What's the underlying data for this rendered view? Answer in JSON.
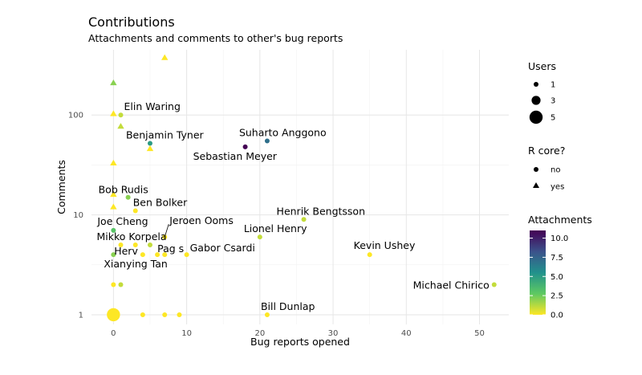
{
  "chart_data": {
    "type": "scatter",
    "title": "Contributions",
    "subtitle": "Attachments and comments to other's bug reports",
    "xlabel": "Bug reports opened",
    "ylabel": "Comments",
    "x_ticks": [
      0,
      10,
      20,
      30,
      40,
      50
    ],
    "y_ticks": [
      1,
      10,
      100
    ],
    "y_scale": "log10",
    "xlim": [
      -3,
      54
    ],
    "ylim": [
      0.8,
      450
    ],
    "grid": true,
    "legend_placement": "right",
    "legends": {
      "size": {
        "title": "Users",
        "items": [
          {
            "label": "1",
            "value": 1
          },
          {
            "label": "3",
            "value": 3
          },
          {
            "label": "5",
            "value": 5
          }
        ]
      },
      "shape": {
        "title": "R core?",
        "items": [
          {
            "label": "no",
            "shape": "circle"
          },
          {
            "label": "yes",
            "shape": "triangle"
          }
        ]
      },
      "color": {
        "title": "Attachments",
        "ticks": [
          "0.0",
          "2.5",
          "5.0",
          "7.5",
          "10.0"
        ],
        "min": 0,
        "max": 11,
        "colors": [
          "#fde725",
          "#5ec962",
          "#21918c",
          "#3b528b",
          "#440154"
        ]
      }
    },
    "points": [
      {
        "x": 0,
        "y": 1,
        "users": 5,
        "shape": "circle",
        "att": 0
      },
      {
        "x": 4,
        "y": 1,
        "users": 1,
        "shape": "circle",
        "att": 0
      },
      {
        "x": 7,
        "y": 1,
        "users": 1,
        "shape": "circle",
        "att": 0
      },
      {
        "x": 9,
        "y": 1,
        "users": 1,
        "shape": "circle",
        "att": 0
      },
      {
        "x": 21,
        "y": 1,
        "users": 1,
        "shape": "circle",
        "att": 0,
        "label": "Bill Dunlap"
      },
      {
        "x": 0,
        "y": 2,
        "users": 1,
        "shape": "circle",
        "att": 0
      },
      {
        "x": 1,
        "y": 2,
        "users": 1,
        "shape": "circle",
        "att": 1
      },
      {
        "x": 52,
        "y": 2,
        "users": 1,
        "shape": "circle",
        "att": 1,
        "label": "Michael Chirico"
      },
      {
        "x": 0,
        "y": 4,
        "users": 1,
        "shape": "circle",
        "att": 2,
        "label": "Xianying Tan"
      },
      {
        "x": 4,
        "y": 4,
        "users": 1,
        "shape": "circle",
        "att": 0,
        "label": "Herv"
      },
      {
        "x": 6,
        "y": 4,
        "users": 1,
        "shape": "circle",
        "att": 0,
        "label": "Pag s"
      },
      {
        "x": 7,
        "y": 4,
        "users": 1,
        "shape": "circle",
        "att": 0
      },
      {
        "x": 10,
        "y": 4,
        "users": 1,
        "shape": "circle",
        "att": 0,
        "label": "Gabor Csardi"
      },
      {
        "x": 35,
        "y": 4,
        "users": 1,
        "shape": "circle",
        "att": 0,
        "label": "Kevin Ushey"
      },
      {
        "x": 1,
        "y": 5,
        "users": 1,
        "shape": "circle",
        "att": 0,
        "label": "Mikko Korpela"
      },
      {
        "x": 3,
        "y": 5,
        "users": 1,
        "shape": "circle",
        "att": 0
      },
      {
        "x": 5,
        "y": 5,
        "users": 1,
        "shape": "circle",
        "att": 1
      },
      {
        "x": 7,
        "y": 6,
        "users": 1,
        "shape": "circle",
        "att": 0,
        "label": "Jeroen Ooms"
      },
      {
        "x": 20,
        "y": 6,
        "users": 1,
        "shape": "circle",
        "att": 1,
        "label": "Lionel Henry"
      },
      {
        "x": 0,
        "y": 7,
        "users": 1,
        "shape": "circle",
        "att": 3,
        "label": "Joe Cheng"
      },
      {
        "x": 26,
        "y": 9,
        "users": 1,
        "shape": "circle",
        "att": 1,
        "label": "Henrik Bengtsson"
      },
      {
        "x": 3,
        "y": 11,
        "users": 1,
        "shape": "circle",
        "att": 0,
        "label": "Ben Bolker"
      },
      {
        "x": 2,
        "y": 15,
        "users": 1,
        "shape": "circle",
        "att": 2,
        "label": "Bob Rudis"
      },
      {
        "x": 5,
        "y": 52,
        "users": 1,
        "shape": "circle",
        "att": 5,
        "label": "Benjamin Tyner"
      },
      {
        "x": 18,
        "y": 48,
        "users": 1,
        "shape": "circle",
        "att": 11,
        "label": "Sebastian Meyer"
      },
      {
        "x": 21,
        "y": 55,
        "users": 1,
        "shape": "circle",
        "att": 7,
        "label": "Suharto Anggono"
      },
      {
        "x": 1,
        "y": 100,
        "users": 1,
        "shape": "circle",
        "att": 1,
        "label": "Elin Waring"
      },
      {
        "x": 0,
        "y": 12,
        "users": 1,
        "shape": "triangle",
        "att": 0
      },
      {
        "x": 0,
        "y": 16,
        "users": 1,
        "shape": "triangle",
        "att": 0
      },
      {
        "x": 0,
        "y": 33,
        "users": 1,
        "shape": "triangle",
        "att": 0
      },
      {
        "x": 5,
        "y": 46,
        "users": 1,
        "shape": "triangle",
        "att": 0
      },
      {
        "x": 1,
        "y": 77,
        "users": 1,
        "shape": "triangle",
        "att": 1
      },
      {
        "x": 0,
        "y": 103,
        "users": 1,
        "shape": "triangle",
        "att": 0
      },
      {
        "x": 0,
        "y": 210,
        "users": 1,
        "shape": "triangle",
        "att": 2
      },
      {
        "x": 7,
        "y": 375,
        "users": 1,
        "shape": "triangle",
        "att": 0
      }
    ]
  }
}
